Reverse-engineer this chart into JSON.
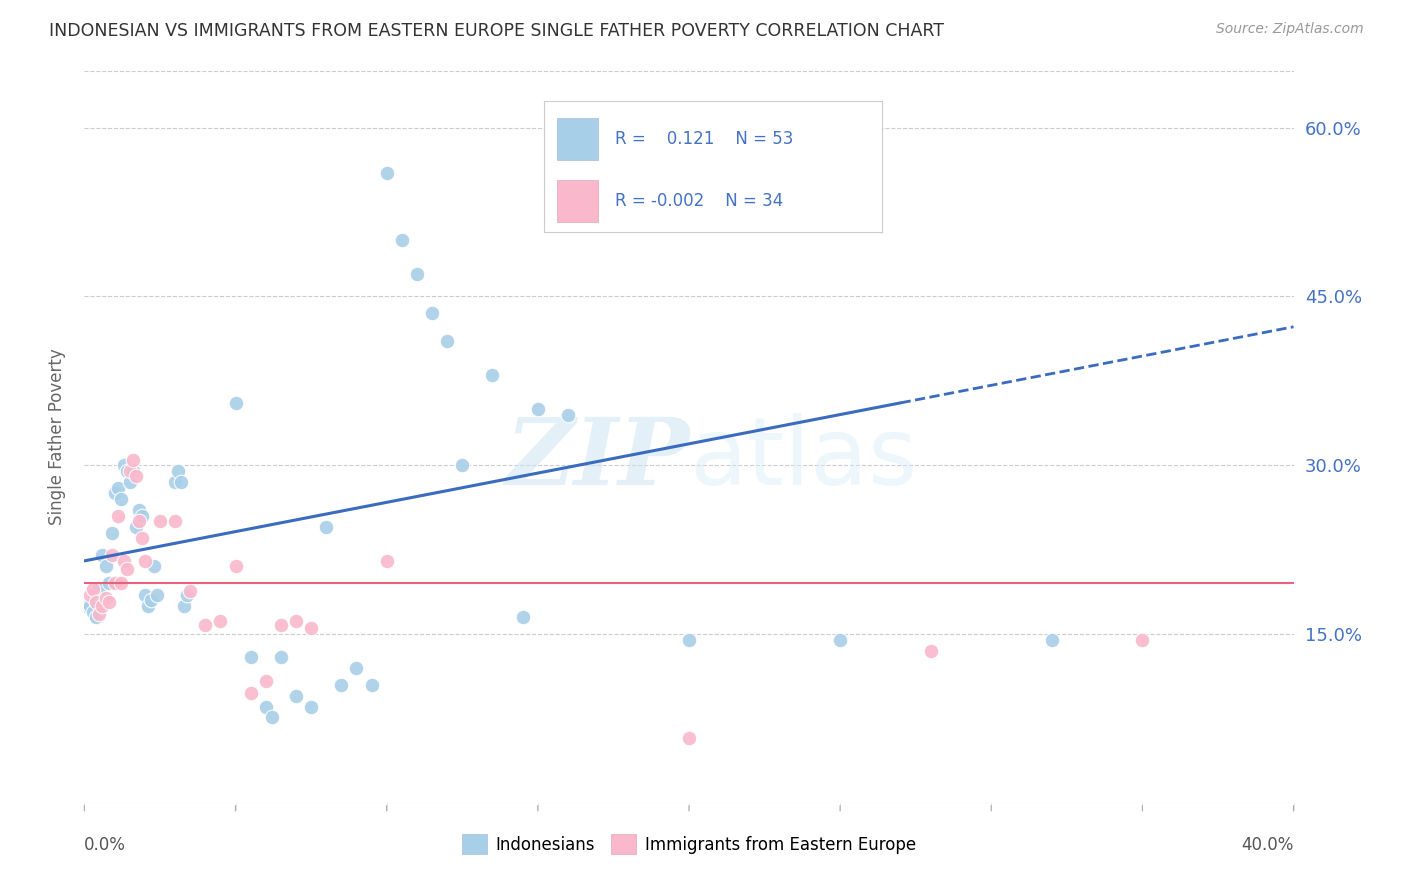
{
  "title": "INDONESIAN VS IMMIGRANTS FROM EASTERN EUROPE SINGLE FATHER POVERTY CORRELATION CHART",
  "source": "Source: ZipAtlas.com",
  "ylabel": "Single Father Poverty",
  "yticks": [
    "15.0%",
    "30.0%",
    "45.0%",
    "60.0%"
  ],
  "ytick_values": [
    0.15,
    0.3,
    0.45,
    0.6
  ],
  "legend1_label": "Indonesians",
  "legend2_label": "Immigrants from Eastern Europe",
  "R1": "0.121",
  "N1": "53",
  "R2": "-0.002",
  "N2": "34",
  "blue_color": "#a8cfe8",
  "pink_color": "#f9b8cb",
  "blue_line_color": "#3a6bbf",
  "pink_line_color": "#e8637a",
  "blue_dots": [
    [
      0.001,
      0.175
    ],
    [
      0.002,
      0.175
    ],
    [
      0.003,
      0.17
    ],
    [
      0.004,
      0.165
    ],
    [
      0.005,
      0.19
    ],
    [
      0.006,
      0.22
    ],
    [
      0.007,
      0.21
    ],
    [
      0.008,
      0.195
    ],
    [
      0.009,
      0.24
    ],
    [
      0.01,
      0.275
    ],
    [
      0.011,
      0.28
    ],
    [
      0.012,
      0.27
    ],
    [
      0.013,
      0.3
    ],
    [
      0.014,
      0.295
    ],
    [
      0.015,
      0.285
    ],
    [
      0.016,
      0.295
    ],
    [
      0.017,
      0.245
    ],
    [
      0.018,
      0.26
    ],
    [
      0.019,
      0.255
    ],
    [
      0.02,
      0.185
    ],
    [
      0.021,
      0.175
    ],
    [
      0.022,
      0.18
    ],
    [
      0.023,
      0.21
    ],
    [
      0.024,
      0.185
    ],
    [
      0.03,
      0.285
    ],
    [
      0.031,
      0.295
    ],
    [
      0.032,
      0.285
    ],
    [
      0.033,
      0.175
    ],
    [
      0.034,
      0.185
    ],
    [
      0.05,
      0.355
    ],
    [
      0.055,
      0.13
    ],
    [
      0.06,
      0.085
    ],
    [
      0.062,
      0.076
    ],
    [
      0.065,
      0.13
    ],
    [
      0.07,
      0.095
    ],
    [
      0.075,
      0.085
    ],
    [
      0.08,
      0.245
    ],
    [
      0.085,
      0.105
    ],
    [
      0.09,
      0.12
    ],
    [
      0.095,
      0.105
    ],
    [
      0.1,
      0.56
    ],
    [
      0.105,
      0.5
    ],
    [
      0.11,
      0.47
    ],
    [
      0.115,
      0.435
    ],
    [
      0.12,
      0.41
    ],
    [
      0.125,
      0.3
    ],
    [
      0.135,
      0.38
    ],
    [
      0.145,
      0.165
    ],
    [
      0.15,
      0.35
    ],
    [
      0.16,
      0.345
    ],
    [
      0.2,
      0.145
    ],
    [
      0.25,
      0.145
    ],
    [
      0.32,
      0.145
    ]
  ],
  "pink_dots": [
    [
      0.002,
      0.185
    ],
    [
      0.003,
      0.19
    ],
    [
      0.004,
      0.178
    ],
    [
      0.005,
      0.168
    ],
    [
      0.006,
      0.175
    ],
    [
      0.007,
      0.182
    ],
    [
      0.008,
      0.178
    ],
    [
      0.009,
      0.22
    ],
    [
      0.01,
      0.195
    ],
    [
      0.011,
      0.255
    ],
    [
      0.012,
      0.195
    ],
    [
      0.013,
      0.215
    ],
    [
      0.014,
      0.208
    ],
    [
      0.015,
      0.295
    ],
    [
      0.016,
      0.305
    ],
    [
      0.017,
      0.29
    ],
    [
      0.018,
      0.25
    ],
    [
      0.019,
      0.235
    ],
    [
      0.02,
      0.215
    ],
    [
      0.025,
      0.25
    ],
    [
      0.03,
      0.25
    ],
    [
      0.035,
      0.188
    ],
    [
      0.04,
      0.158
    ],
    [
      0.045,
      0.162
    ],
    [
      0.05,
      0.21
    ],
    [
      0.055,
      0.098
    ],
    [
      0.06,
      0.108
    ],
    [
      0.065,
      0.158
    ],
    [
      0.07,
      0.162
    ],
    [
      0.075,
      0.155
    ],
    [
      0.1,
      0.215
    ],
    [
      0.2,
      0.058
    ],
    [
      0.28,
      0.135
    ],
    [
      0.35,
      0.145
    ]
  ],
  "watermark_zip": "ZIP",
  "watermark_atlas": "atlas",
  "xmin": 0.0,
  "xmax": 0.4,
  "ymin": 0.0,
  "ymax": 0.65,
  "blue_slope": 0.52,
  "blue_intercept": 0.215,
  "pink_slope": 0.0,
  "pink_intercept": 0.195
}
